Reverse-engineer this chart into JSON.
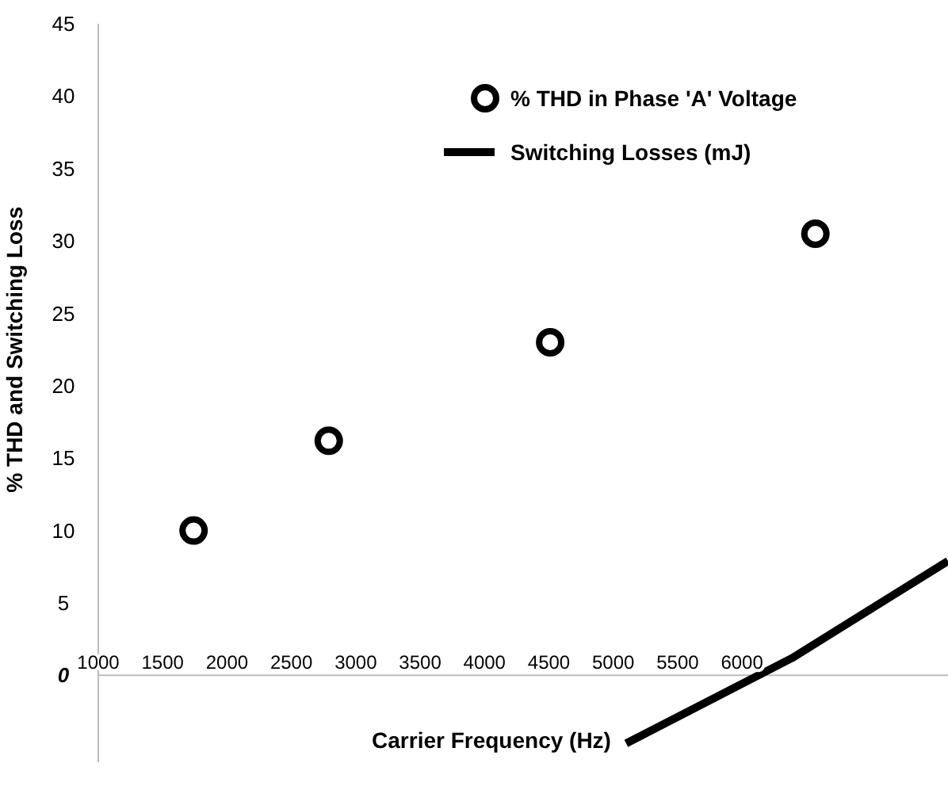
{
  "chart_data": {
    "type": "scatter",
    "xlabel": "Carrier Frequency (Hz)",
    "ylabel": "% THD and Switching Loss",
    "xlim": [
      1000,
      7600
    ],
    "xticks": [
      1000,
      1500,
      2000,
      2500,
      3000,
      3500,
      4000,
      4500,
      5000,
      5500,
      6000
    ],
    "ylim": [
      -6,
      45
    ],
    "yticks": [
      0,
      5,
      10,
      15,
      20,
      25,
      30,
      35,
      40,
      45
    ],
    "legend": "top right",
    "grid": false,
    "series": [
      {
        "name": "% THD in Phase 'A' Voltage",
        "marker": "circle",
        "color": "#000000",
        "x": [
          1740,
          2790,
          4510,
          6570
        ],
        "values": [
          10,
          16.2,
          23,
          30.5
        ]
      },
      {
        "name": "Switching Losses (mJ)",
        "type": "line",
        "marker": "none",
        "color": "#000000",
        "x": [
          5100,
          6390,
          7600
        ],
        "values": [
          -4.7,
          1.2,
          7.9
        ]
      }
    ]
  }
}
